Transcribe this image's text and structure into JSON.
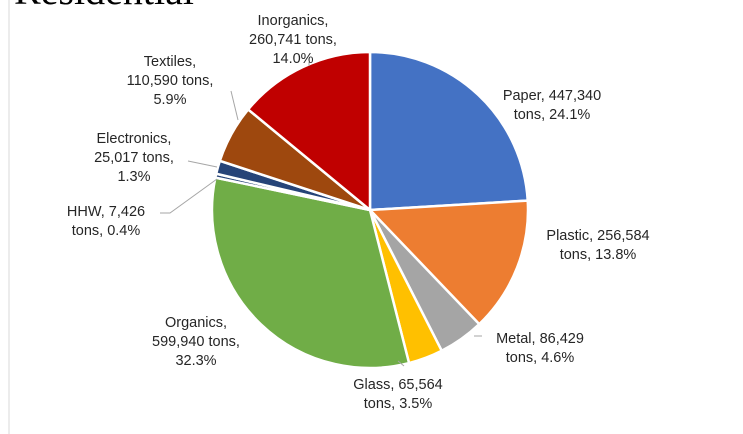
{
  "chart_data": {
    "type": "pie",
    "title": "Residential",
    "start_angle_deg": 0,
    "direction": "clockwise",
    "slices": [
      {
        "name": "Paper",
        "tons": 447340,
        "percent": 24.1,
        "color": "#4472C4",
        "label_lines": [
          "Paper,  447,340",
          "tons, 24.1%"
        ]
      },
      {
        "name": "Plastic",
        "tons": 256584,
        "percent": 13.8,
        "color": "#ED7D31",
        "label_lines": [
          "Plastic,  256,584",
          "tons, 13.8%"
        ]
      },
      {
        "name": "Metal",
        "tons": 86429,
        "percent": 4.6,
        "color": "#A5A5A5",
        "label_lines": [
          "Metal,  86,429",
          "tons, 4.6%"
        ]
      },
      {
        "name": "Glass",
        "tons": 65564,
        "percent": 3.5,
        "color": "#FFC000",
        "label_lines": [
          "Glass,  65,564",
          "tons, 3.5%"
        ]
      },
      {
        "name": "Organics",
        "tons": 599940,
        "percent": 32.3,
        "color": "#70AD47",
        "label_lines": [
          "Organics,",
          "599,940 tons,",
          "32.3%"
        ]
      },
      {
        "name": "HHW",
        "tons": 7426,
        "percent": 0.4,
        "color": "#264478",
        "label_lines": [
          "HHW,  7,426",
          "tons, 0.4%"
        ]
      },
      {
        "name": "Electronics",
        "tons": 25017,
        "percent": 1.3,
        "color": "#264478",
        "label_lines": [
          "Electronics,",
          "25,017 tons,",
          "1.3%"
        ]
      },
      {
        "name": "Textiles",
        "tons": 110590,
        "percent": 5.9,
        "color": "#9E480E",
        "label_lines": [
          "Textiles,",
          "110,590 tons,",
          "5.9%"
        ]
      },
      {
        "name": "Inorganics",
        "tons": 260741,
        "percent": 14.0,
        "color": "#C00000",
        "label_lines": [
          "Inorganics,",
          "260,741 tons,",
          "14.0%"
        ]
      }
    ]
  }
}
